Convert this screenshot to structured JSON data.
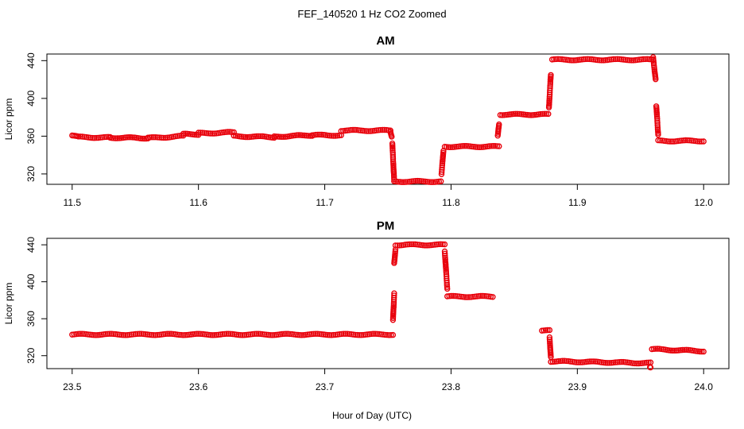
{
  "figure_title": "FEF_140520 1 Hz CO2 Zoomed",
  "shared_xlabel": "Hour of Day (UTC)",
  "series_color": "#e8000b",
  "chart_data": [
    {
      "type": "scatter",
      "title": "AM",
      "ylabel": "Licor ppm",
      "xlim": [
        11.48,
        12.02
      ],
      "ylim": [
        309,
        447
      ],
      "x_ticks": [
        11.5,
        11.6,
        11.7,
        11.8,
        11.9,
        12.0
      ],
      "x_tick_labels": [
        "11.5",
        "11.6",
        "11.7",
        "11.8",
        "11.9",
        "12.0"
      ],
      "y_ticks": [
        320,
        360,
        400,
        440
      ],
      "y_tick_labels": [
        "320",
        "360",
        "400",
        "440"
      ],
      "grid": false,
      "marker": "open-circle",
      "segments": [
        {
          "x": [
            11.5,
            11.505
          ],
          "y": [
            361,
            359
          ]
        },
        {
          "x": [
            11.505,
            11.53
          ],
          "y": [
            359,
            358.5
          ]
        },
        {
          "x": [
            11.53,
            11.56
          ],
          "y": [
            358.5,
            358
          ]
        },
        {
          "x": [
            11.56,
            11.588
          ],
          "y": [
            358,
            360
          ]
        },
        {
          "x": [
            11.588,
            11.6
          ],
          "y": [
            362,
            362
          ]
        },
        {
          "x": [
            11.6,
            11.628
          ],
          "y": [
            363,
            364
          ]
        },
        {
          "x": [
            11.628,
            11.66
          ],
          "y": [
            360,
            359
          ]
        },
        {
          "x": [
            11.66,
            11.69
          ],
          "y": [
            359.5,
            361
          ]
        },
        {
          "x": [
            11.69,
            11.713
          ],
          "y": [
            361,
            361
          ]
        },
        {
          "x": [
            11.713,
            11.752
          ],
          "y": [
            366,
            366
          ]
        },
        {
          "x": [
            11.752,
            11.753
          ],
          "y": [
            365,
            360
          ]
        },
        {
          "x": [
            11.7535,
            11.755
          ],
          "y": [
            352,
            312
          ]
        },
        {
          "x": [
            11.755,
            11.792
          ],
          "y": [
            312,
            312
          ]
        },
        {
          "x": [
            11.7925,
            11.794
          ],
          "y": [
            320,
            345
          ]
        },
        {
          "x": [
            11.795,
            11.838
          ],
          "y": [
            349,
            349
          ]
        },
        {
          "x": [
            11.837,
            11.838
          ],
          "y": [
            360,
            373
          ]
        },
        {
          "x": [
            11.839,
            11.877
          ],
          "y": [
            383,
            383
          ]
        },
        {
          "x": [
            11.8775,
            11.879
          ],
          "y": [
            390,
            425
          ]
        },
        {
          "x": [
            11.88,
            11.96
          ],
          "y": [
            441,
            441
          ]
        },
        {
          "x": [
            11.96,
            11.962
          ],
          "y": [
            443,
            420
          ]
        },
        {
          "x": [
            11.9625,
            11.964
          ],
          "y": [
            392,
            362
          ]
        },
        {
          "x": [
            11.964,
            12.0
          ],
          "y": [
            355,
            355
          ]
        }
      ]
    },
    {
      "type": "scatter",
      "title": "PM",
      "ylabel": "Licor ppm",
      "xlim": [
        23.48,
        24.02
      ],
      "ylim": [
        306,
        447
      ],
      "x_ticks": [
        23.5,
        23.6,
        23.7,
        23.8,
        23.9,
        24.0
      ],
      "x_tick_labels": [
        "23.5",
        "23.6",
        "23.7",
        "23.8",
        "23.9",
        "24.0"
      ],
      "y_ticks": [
        320,
        360,
        400,
        440
      ],
      "y_tick_labels": [
        "320",
        "360",
        "400",
        "440"
      ],
      "grid": false,
      "marker": "open-circle",
      "segments": [
        {
          "x": [
            23.5,
            23.754
          ],
          "y": [
            343,
            343
          ]
        },
        {
          "x": [
            23.754,
            23.755
          ],
          "y": [
            358,
            387
          ]
        },
        {
          "x": [
            23.755,
            23.756
          ],
          "y": [
            420,
            435
          ]
        },
        {
          "x": [
            23.756,
            23.795
          ],
          "y": [
            440,
            440
          ]
        },
        {
          "x": [
            23.795,
            23.797
          ],
          "y": [
            433,
            393
          ]
        },
        {
          "x": [
            23.797,
            23.833
          ],
          "y": [
            384,
            384
          ]
        },
        {
          "x": [
            23.872,
            23.878
          ],
          "y": [
            347,
            347
          ]
        },
        {
          "x": [
            23.878,
            23.879
          ],
          "y": [
            340,
            318
          ]
        },
        {
          "x": [
            23.879,
            23.958
          ],
          "y": [
            314,
            312
          ]
        },
        {
          "x": [
            23.9575,
            23.958
          ],
          "y": [
            308,
            308
          ]
        },
        {
          "x": [
            23.959,
            24.0
          ],
          "y": [
            327,
            325
          ]
        }
      ]
    }
  ]
}
